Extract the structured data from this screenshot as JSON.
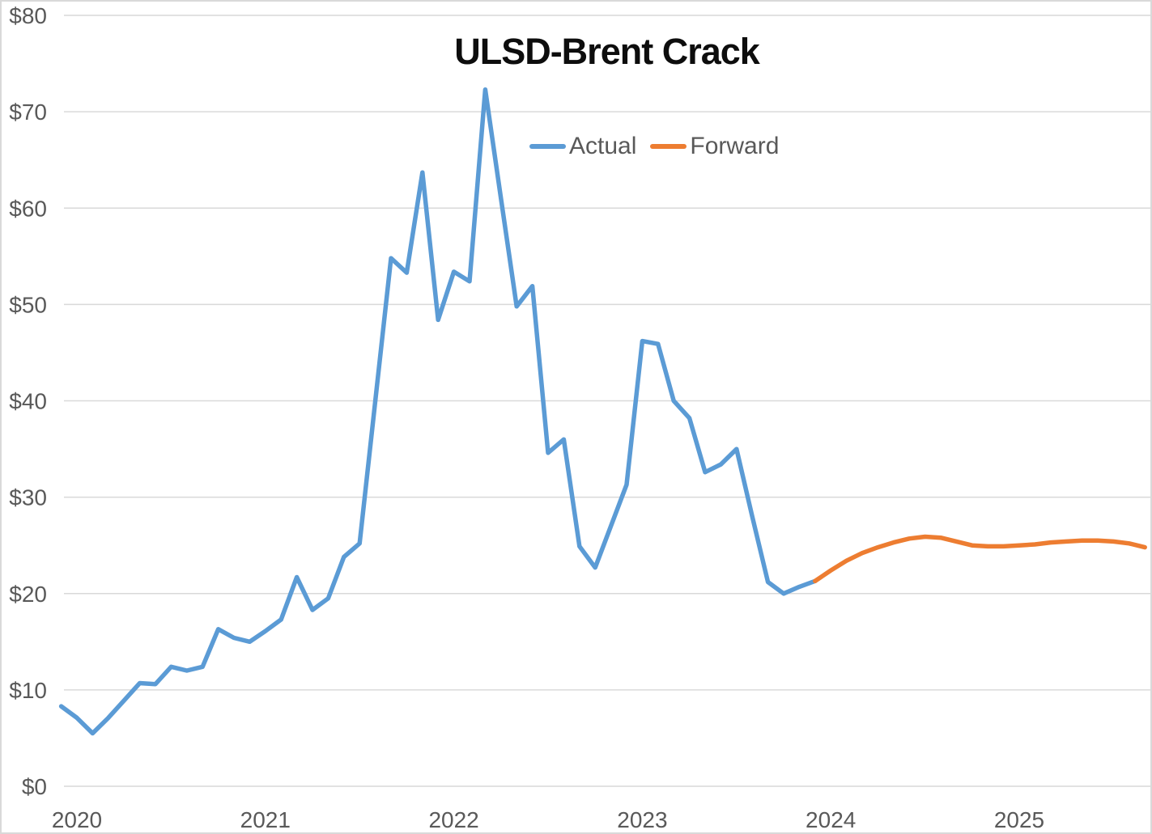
{
  "window": {
    "background_color": "#FFFFFF",
    "frame_border_color": "#D9D9D9"
  },
  "legend": {
    "items": [
      {
        "label": "Actual",
        "color": "#5B9BD5"
      },
      {
        "label": "Forward",
        "color": "#ED7D31"
      }
    ]
  },
  "colors": {
    "actual_line": "#5B9BD5",
    "forward_line": "#ED7D31",
    "gridline": "#D9D9D9",
    "axis_text": "#595959",
    "title_text": "#0D0D0D"
  },
  "chart_data": {
    "type": "line",
    "title": "ULSD-Brent Crack",
    "xlabel": "",
    "ylabel": "",
    "grid": "horizontal-only",
    "legend_position": "top-center",
    "x_unit": "month",
    "x_start": "2019-12",
    "x_end": "2025-09",
    "ylim": [
      0,
      80
    ],
    "y_axis": {
      "tick_values": [
        0,
        10,
        20,
        30,
        40,
        50,
        60,
        70,
        80
      ],
      "tick_labels": [
        "$0",
        "$10",
        "$20",
        "$30",
        "$40",
        "$50",
        "$60",
        "$70",
        "$80"
      ]
    },
    "x_axis": {
      "tick_labels": [
        "2020",
        "2021",
        "2022",
        "2023",
        "2024",
        "2025"
      ],
      "tick_month_indices": [
        1,
        13,
        25,
        37,
        49,
        61
      ]
    },
    "series": [
      {
        "name": "Actual",
        "color": "#5B9BD5",
        "start_month": "2019-12",
        "start_index": 0,
        "values": [
          8.3,
          7.1,
          5.5,
          7.1,
          8.9,
          10.7,
          10.6,
          12.4,
          12.0,
          12.4,
          16.3,
          15.4,
          15.0,
          16.1,
          17.3,
          21.7,
          18.3,
          19.5,
          23.8,
          25.2,
          40.0,
          54.8,
          53.3,
          63.7,
          48.4,
          53.4,
          52.4,
          72.3,
          61.0,
          49.8,
          51.9,
          34.6,
          36.0,
          24.9,
          22.7,
          27.0,
          31.3,
          46.2,
          45.9,
          40.0,
          38.2,
          32.6,
          33.4,
          35.0,
          28.0,
          21.2,
          20.0,
          20.7,
          21.3
        ]
      },
      {
        "name": "Forward",
        "color": "#ED7D31",
        "start_month": "2023-12",
        "start_index": 48,
        "values": [
          21.3,
          22.4,
          23.4,
          24.2,
          24.8,
          25.3,
          25.7,
          25.9,
          25.8,
          25.4,
          25.0,
          24.9,
          24.9,
          25.0,
          25.1,
          25.3,
          25.4,
          25.5,
          25.5,
          25.4,
          25.2,
          24.8
        ]
      }
    ]
  }
}
